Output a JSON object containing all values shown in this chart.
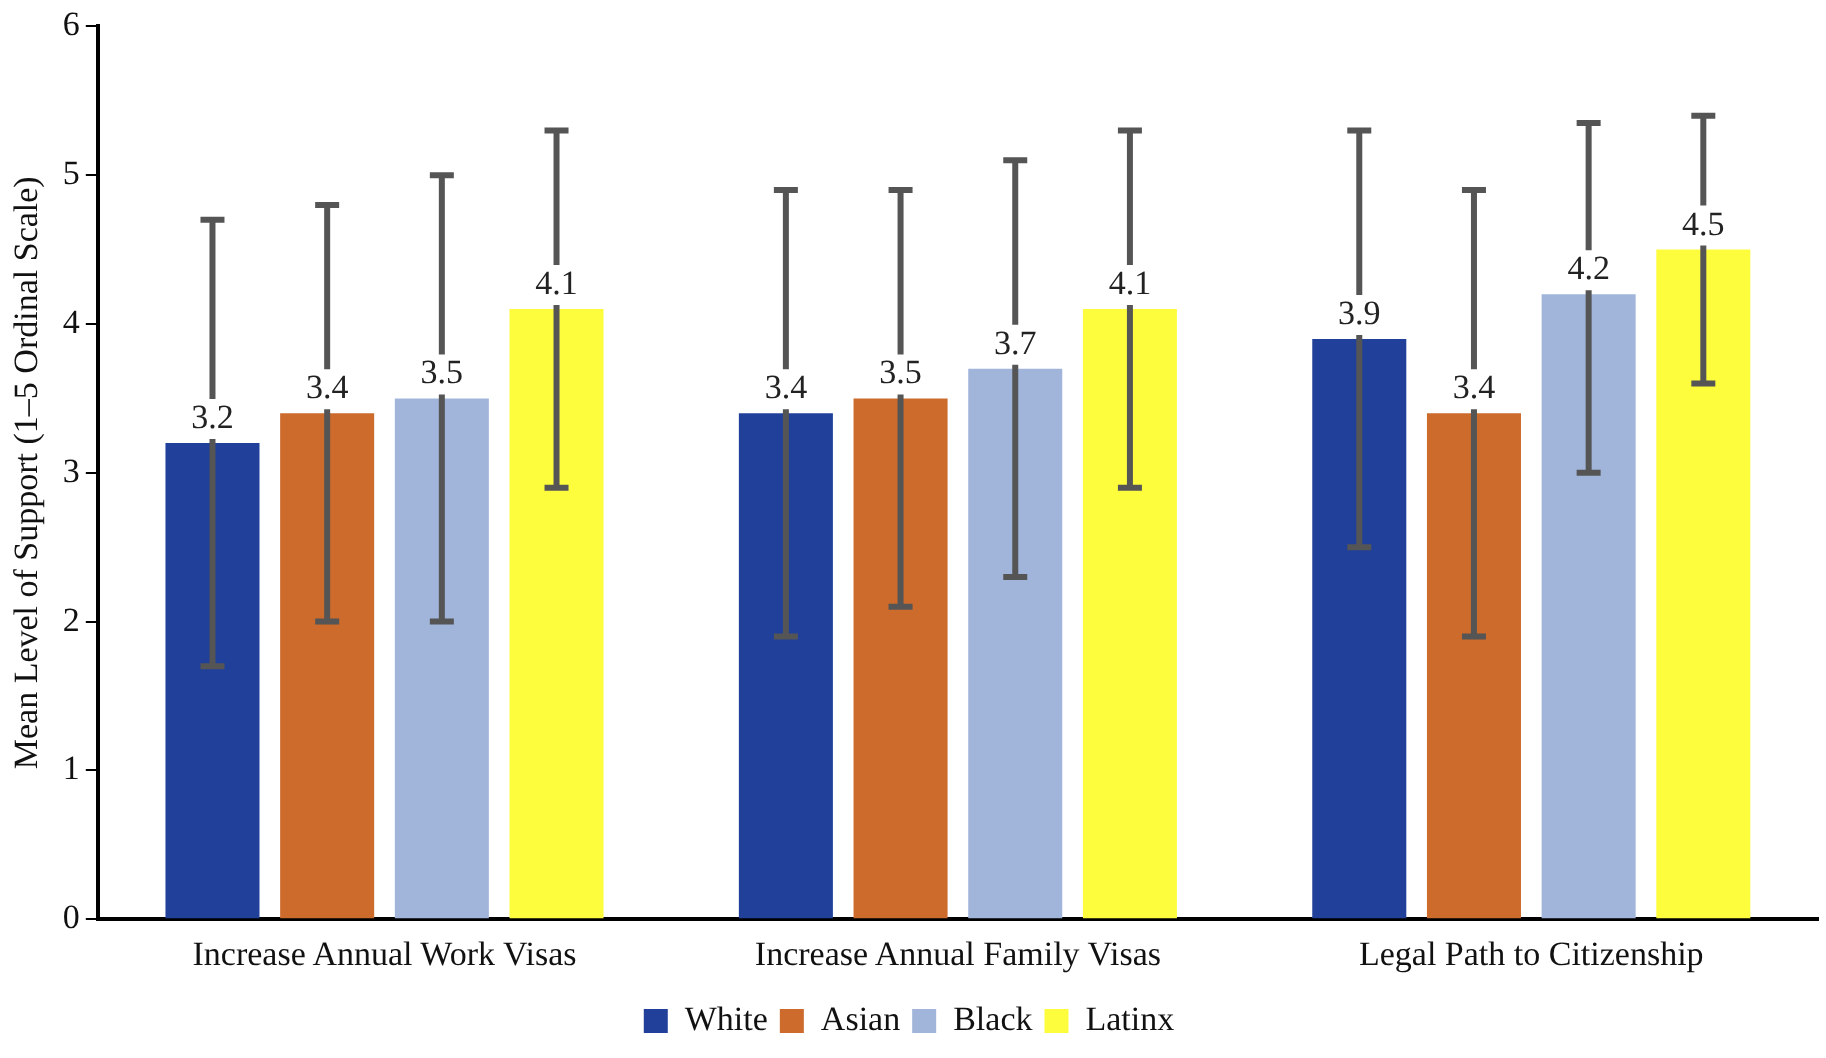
{
  "chart_data": {
    "type": "bar",
    "ylabel": "Mean Level of Support (1–5 Ordinal Scale)",
    "categories": [
      "Increase Annual Work Visas",
      "Increase Annual Family Visas",
      "Legal Path to Citizenship"
    ],
    "series": [
      {
        "name": "White",
        "color": "#21409a",
        "values": [
          3.2,
          3.4,
          3.9
        ],
        "errors": [
          [
            1.7,
            4.7
          ],
          [
            1.9,
            4.9
          ],
          [
            2.5,
            5.3
          ]
        ]
      },
      {
        "name": "Asian",
        "color": "#cc6b2c",
        "values": [
          3.4,
          3.5,
          3.4
        ],
        "errors": [
          [
            2.0,
            4.8
          ],
          [
            2.1,
            4.9
          ],
          [
            1.9,
            4.9
          ]
        ]
      },
      {
        "name": "Black",
        "color": "#a1b5db",
        "values": [
          3.5,
          3.7,
          4.2
        ],
        "errors": [
          [
            2.0,
            5.0
          ],
          [
            2.3,
            5.1
          ],
          [
            3.0,
            5.35
          ]
        ]
      },
      {
        "name": "Latinx",
        "color": "#fdfd3e",
        "values": [
          4.1,
          4.1,
          4.5
        ],
        "errors": [
          [
            2.9,
            5.3
          ],
          [
            2.9,
            5.3
          ],
          [
            3.6,
            5.4
          ]
        ]
      }
    ],
    "ylim": [
      0,
      6
    ],
    "yticks": [
      0,
      1,
      2,
      3,
      4,
      5,
      6
    ],
    "grid": false,
    "legend": "bottom",
    "data_labels": true
  }
}
